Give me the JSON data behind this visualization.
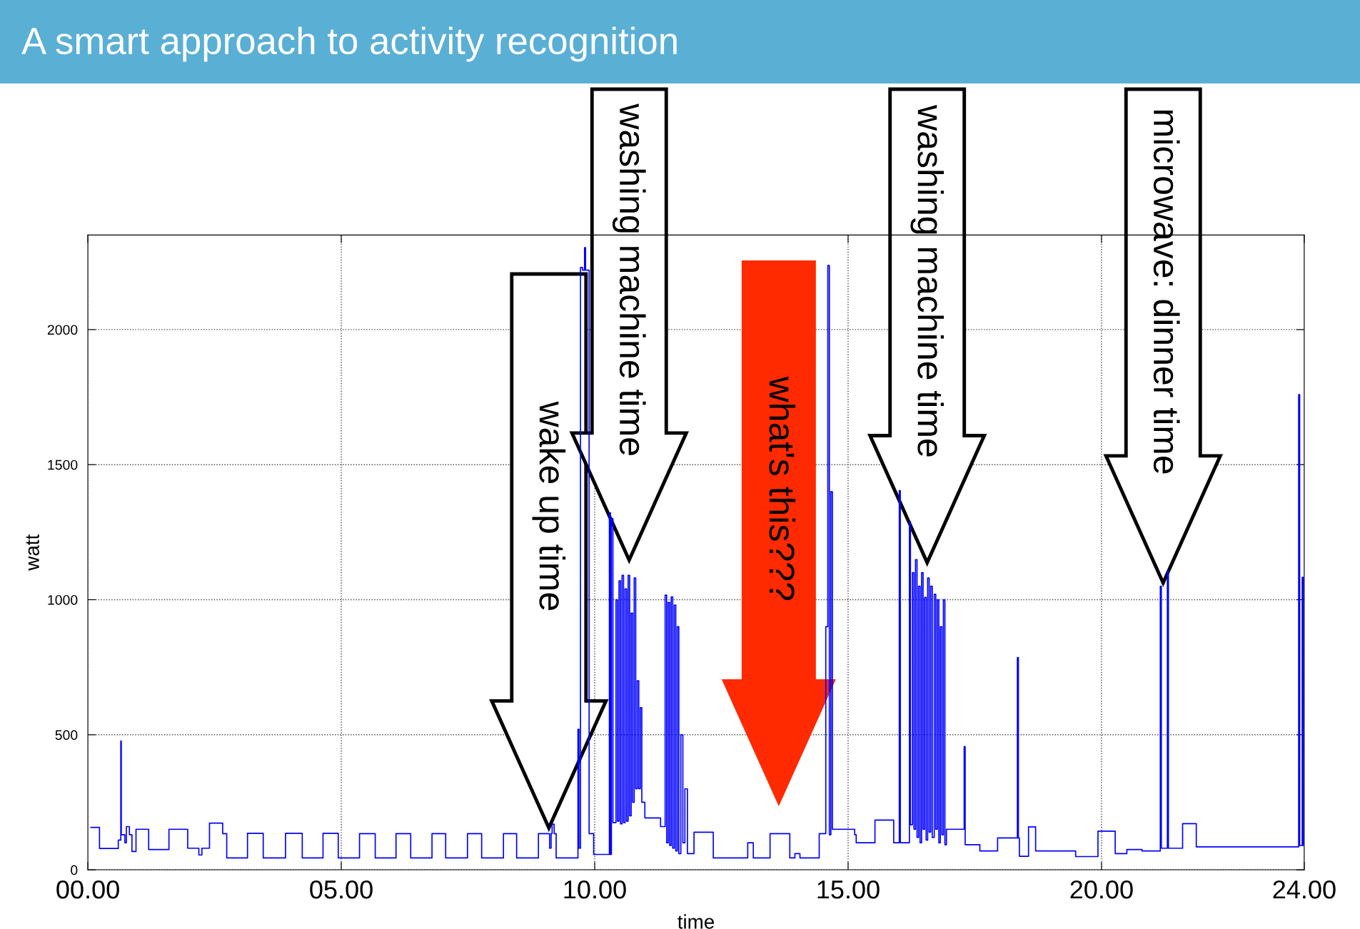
{
  "chart_data": {
    "type": "step",
    "title": "A smart approach to activity recognition",
    "xlabel": "time",
    "ylabel": "watt",
    "xlim": [
      0,
      24
    ],
    "xticks": [
      {
        "value": 0,
        "label": "00.00"
      },
      {
        "value": 5,
        "label": "05.00"
      },
      {
        "value": 10,
        "label": "10.00"
      },
      {
        "value": 15,
        "label": "15.00"
      },
      {
        "value": 20,
        "label": "20.00"
      },
      {
        "value": 24,
        "label": "24.00"
      }
    ],
    "ylim": [
      0,
      2350
    ],
    "yticks": [
      0,
      500,
      1000,
      1500,
      2000
    ],
    "grid": true,
    "series": [
      {
        "color": "#0000ff",
        "x": [
          0.06,
          0.23,
          0.6,
          0.65,
          0.66,
          0.73,
          0.76,
          0.82,
          0.87,
          0.95,
          1.2,
          1.6,
          1.97,
          2.19,
          2.25,
          2.4,
          2.66,
          2.74,
          3.15,
          3.46,
          3.9,
          4.23,
          4.64,
          4.94,
          5.36,
          5.67,
          6.08,
          6.37,
          6.79,
          7.06,
          7.49,
          7.77,
          8.2,
          8.46,
          8.89,
          9.11,
          9.14,
          9.16,
          9.2,
          9.24,
          9.67,
          9.69,
          9.72,
          9.76,
          9.8,
          9.82,
          9.89,
          9.98,
          10.29,
          10.31,
          10.33,
          10.36,
          10.42,
          10.45,
          10.48,
          10.51,
          10.54,
          10.57,
          10.6,
          10.63,
          10.66,
          10.69,
          10.72,
          10.75,
          10.78,
          10.81,
          10.84,
          10.87,
          10.9,
          10.93,
          10.99,
          11.3,
          11.39,
          11.42,
          11.45,
          11.48,
          11.51,
          11.54,
          11.57,
          11.6,
          11.63,
          11.66,
          11.7,
          11.74,
          11.78,
          11.83,
          11.96,
          12.34,
          13.02,
          13.13,
          13.46,
          13.85,
          13.95,
          14.05,
          14.43,
          14.56,
          14.6,
          14.63,
          14.66,
          14.69,
          15.13,
          15.16,
          15.53,
          15.9,
          16.01,
          16.03,
          16.21,
          16.23,
          16.27,
          16.3,
          16.33,
          16.36,
          16.39,
          16.42,
          16.45,
          16.48,
          16.51,
          16.54,
          16.57,
          16.6,
          16.63,
          16.66,
          16.7,
          16.73,
          16.76,
          16.79,
          16.82,
          16.85,
          16.88,
          16.91,
          16.94,
          17.29,
          17.31,
          17.6,
          17.95,
          18.34,
          18.36,
          18.38,
          18.56,
          18.7,
          19.49,
          19.93,
          20.27,
          20.5,
          20.8,
          21.16,
          21.18,
          21.3,
          21.32,
          21.6,
          21.87,
          23.89,
          23.91,
          23.96,
          23.98
        ],
        "values": [
          157,
          79,
          110,
          477,
          130,
          100,
          160,
          130,
          68,
          150,
          75,
          150,
          80,
          55,
          80,
          173,
          134,
          44,
          135,
          44,
          135,
          44,
          135,
          44,
          134,
          44,
          134,
          44,
          134,
          44,
          134,
          44,
          134,
          44,
          134,
          80,
          134,
          169,
          134,
          44,
          520,
          80,
          2230,
          2220,
          2303,
          2220,
          134,
          57,
          1322,
          57,
          1300,
          175,
          1000,
          180,
          1070,
          170,
          1090,
          175,
          1040,
          180,
          1090,
          200,
          950,
          250,
          1080,
          300,
          700,
          300,
          600,
          250,
          192,
          160,
          1017,
          100,
          990,
          90,
          1010,
          80,
          980,
          70,
          900,
          60,
          500,
          100,
          300,
          60,
          139,
          44,
          100,
          44,
          134,
          44,
          60,
          44,
          134,
          900,
          2237,
          130,
          1400,
          150,
          130,
          100,
          184,
          100,
          1404,
          100,
          1289,
          167,
          1100,
          150,
          1148,
          120,
          1050,
          100,
          1100,
          150,
          1008,
          110,
          1080,
          140,
          1050,
          120,
          1020,
          150,
          1000,
          100,
          900,
          130,
          1000,
          93,
          150,
          456,
          93,
          70,
          118,
          786,
          118,
          50,
          159,
          70,
          49,
          143,
          60,
          75,
          70,
          1050,
          80,
          1107,
          80,
          171,
          85,
          1759,
          90,
          1083,
          90
        ]
      }
    ],
    "annotations": [
      "wake up time",
      "washing machine time",
      "what's this???",
      "washing machine time",
      "microwave: dinner time"
    ]
  }
}
